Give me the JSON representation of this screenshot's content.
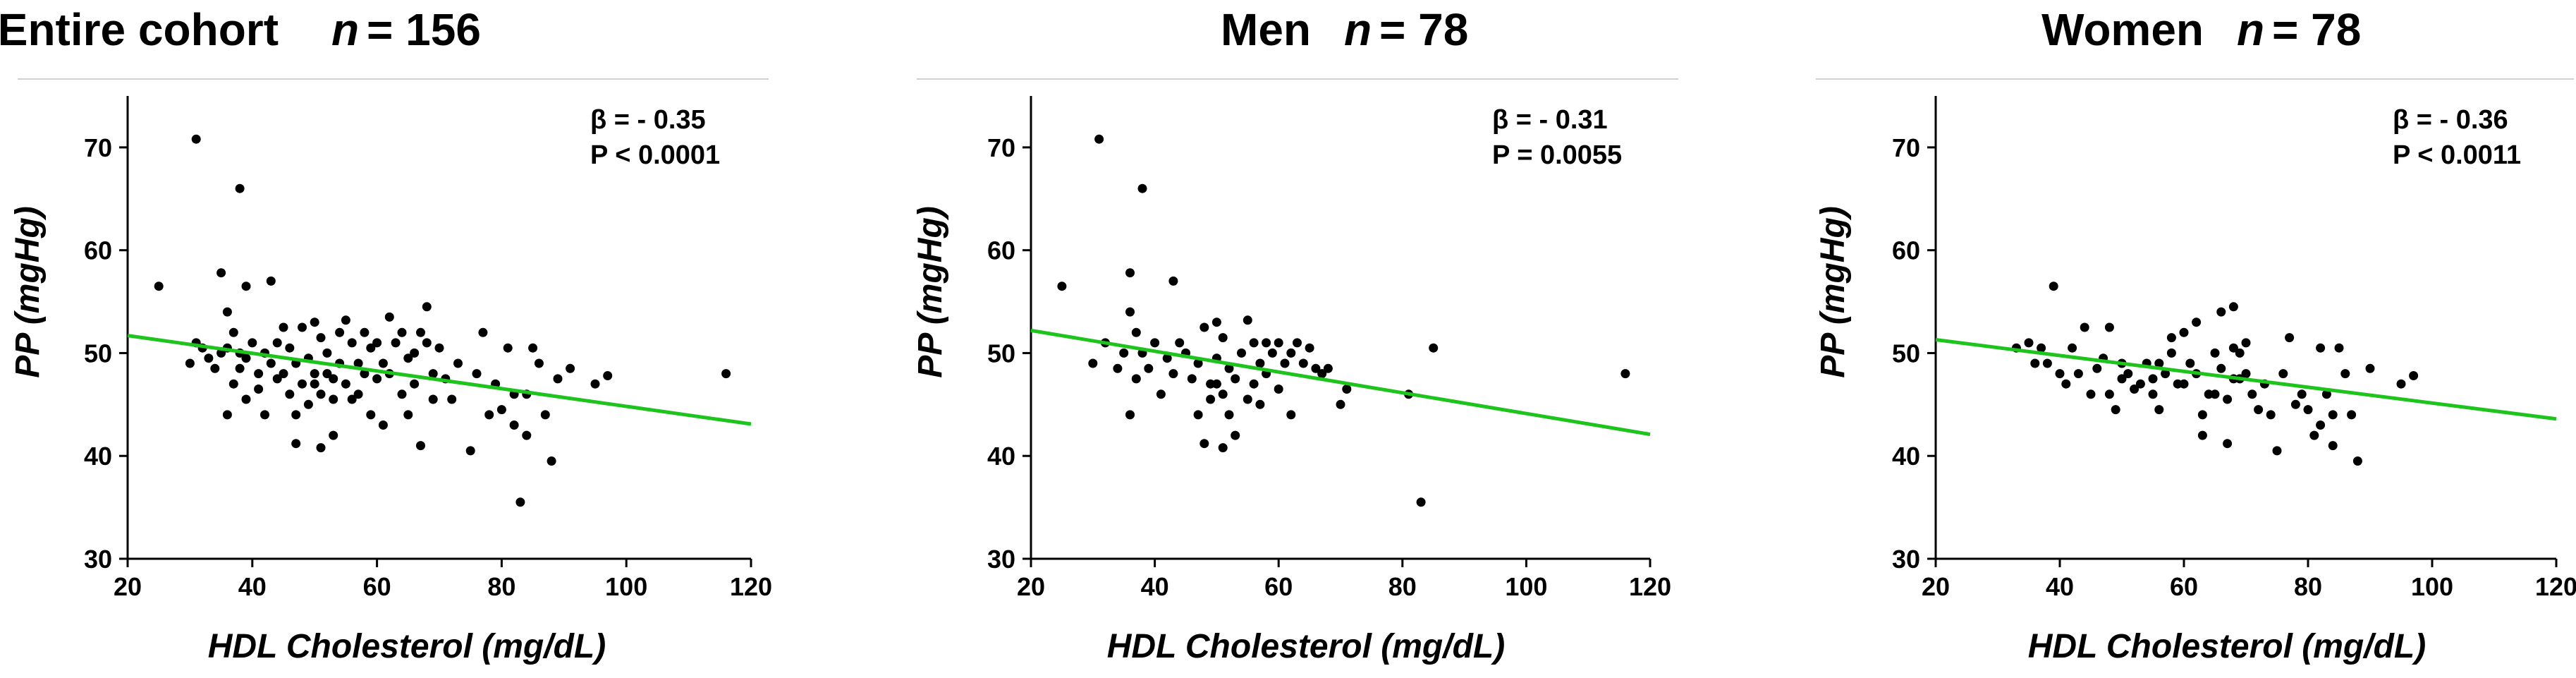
{
  "chart_data": [
    {
      "type": "scatter",
      "panel": "entire",
      "title": "Entire cohort",
      "n_label": "n",
      "n_value": "= 156",
      "xlabel": "HDL Cholesterol (mg/dL)",
      "ylabel": "PP (mgHg)",
      "xlim": [
        20,
        120
      ],
      "ylim": [
        30,
        75
      ],
      "xticks": [
        20,
        40,
        60,
        80,
        100,
        120
      ],
      "yticks": [
        30,
        40,
        50,
        60,
        70
      ],
      "beta": "β = - 0.35",
      "p": "P < 0.0001",
      "fit_line": {
        "x": [
          20,
          120
        ],
        "y": [
          51.7,
          43.1
        ]
      },
      "points": [
        [
          25,
          56.5
        ],
        [
          30,
          49
        ],
        [
          31,
          70.8
        ],
        [
          31,
          51
        ],
        [
          32,
          50.5
        ],
        [
          33,
          49.5
        ],
        [
          34,
          48.5
        ],
        [
          35,
          50
        ],
        [
          35,
          57.8
        ],
        [
          36,
          54
        ],
        [
          36,
          44
        ],
        [
          36,
          50.5
        ],
        [
          37,
          52
        ],
        [
          37,
          47
        ],
        [
          38,
          66
        ],
        [
          38,
          50
        ],
        [
          38,
          48.5
        ],
        [
          39,
          45.5
        ],
        [
          39,
          49.5
        ],
        [
          39,
          56.5
        ],
        [
          40,
          51
        ],
        [
          41,
          48
        ],
        [
          41,
          46.5
        ],
        [
          42,
          50
        ],
        [
          42,
          44
        ],
        [
          43,
          57
        ],
        [
          43,
          49
        ],
        [
          44,
          51
        ],
        [
          44,
          47.5
        ],
        [
          45,
          52.5
        ],
        [
          45,
          48
        ],
        [
          46,
          46
        ],
        [
          46,
          50.5
        ],
        [
          47,
          49
        ],
        [
          47,
          44
        ],
        [
          47,
          41.2
        ],
        [
          48,
          52.5
        ],
        [
          48,
          47
        ],
        [
          49,
          49.5
        ],
        [
          49,
          45
        ],
        [
          50,
          53
        ],
        [
          50,
          48
        ],
        [
          50,
          47
        ],
        [
          51,
          51.5
        ],
        [
          51,
          46
        ],
        [
          51,
          40.8
        ],
        [
          52,
          50
        ],
        [
          52,
          48
        ],
        [
          53,
          47.5
        ],
        [
          53,
          45.5
        ],
        [
          53,
          42
        ],
        [
          54,
          52
        ],
        [
          54,
          49
        ],
        [
          55,
          53.2
        ],
        [
          55,
          47
        ],
        [
          56,
          51
        ],
        [
          56,
          45.5
        ],
        [
          57,
          49
        ],
        [
          57,
          46
        ],
        [
          58,
          52
        ],
        [
          58,
          48
        ],
        [
          59,
          50.5
        ],
        [
          59,
          44
        ],
        [
          60,
          51
        ],
        [
          60,
          47.5
        ],
        [
          61,
          49
        ],
        [
          61,
          43
        ],
        [
          62,
          53.5
        ],
        [
          62,
          48
        ],
        [
          63,
          51
        ],
        [
          64,
          46
        ],
        [
          64,
          52
        ],
        [
          65,
          49.5
        ],
        [
          65,
          44
        ],
        [
          66,
          50
        ],
        [
          66,
          47
        ],
        [
          67,
          52
        ],
        [
          67,
          41
        ],
        [
          68,
          54.5
        ],
        [
          68,
          51
        ],
        [
          69,
          48
        ],
        [
          69,
          45.5
        ],
        [
          70,
          50.5
        ],
        [
          71,
          47.5
        ],
        [
          72,
          45.5
        ],
        [
          73,
          49
        ],
        [
          75,
          40.5
        ],
        [
          76,
          48
        ],
        [
          77,
          52
        ],
        [
          78,
          44
        ],
        [
          79,
          47
        ],
        [
          80,
          44.5
        ],
        [
          81,
          50.5
        ],
        [
          82,
          46
        ],
        [
          82,
          43
        ],
        [
          83,
          35.5
        ],
        [
          84,
          42
        ],
        [
          84,
          46
        ],
        [
          85,
          50.5
        ],
        [
          86,
          49
        ],
        [
          87,
          44
        ],
        [
          88,
          39.5
        ],
        [
          89,
          47.5
        ],
        [
          91,
          48.5
        ],
        [
          95,
          47
        ],
        [
          97,
          47.8
        ],
        [
          116,
          48
        ]
      ]
    },
    {
      "type": "scatter",
      "panel": "men",
      "title": "Men",
      "n_label": "n",
      "n_value": "= 78",
      "xlabel": "HDL Cholesterol (mg/dL)",
      "ylabel": "PP (mgHg)",
      "xlim": [
        20,
        120
      ],
      "ylim": [
        30,
        75
      ],
      "xticks": [
        20,
        40,
        60,
        80,
        100,
        120
      ],
      "yticks": [
        30,
        40,
        50,
        60,
        70
      ],
      "beta": "β = - 0.31",
      "p": "P = 0.0055",
      "fit_line": {
        "x": [
          20,
          120
        ],
        "y": [
          52.2,
          42.1
        ]
      },
      "points": [
        [
          25,
          56.5
        ],
        [
          30,
          49
        ],
        [
          31,
          70.8
        ],
        [
          32,
          51
        ],
        [
          34,
          48.5
        ],
        [
          35,
          50
        ],
        [
          36,
          57.8
        ],
        [
          36,
          54
        ],
        [
          36,
          44
        ],
        [
          37,
          52
        ],
        [
          37,
          47.5
        ],
        [
          38,
          66
        ],
        [
          38,
          50
        ],
        [
          39,
          48.5
        ],
        [
          40,
          51
        ],
        [
          41,
          46
        ],
        [
          42,
          49.5
        ],
        [
          43,
          57
        ],
        [
          43,
          48
        ],
        [
          44,
          51
        ],
        [
          45,
          50
        ],
        [
          46,
          47.5
        ],
        [
          47,
          49
        ],
        [
          47,
          44
        ],
        [
          48,
          52.5
        ],
        [
          48,
          41.2
        ],
        [
          49,
          47
        ],
        [
          49,
          45.5
        ],
        [
          50,
          53
        ],
        [
          50,
          49.5
        ],
        [
          50,
          47
        ],
        [
          51,
          51.5
        ],
        [
          51,
          46
        ],
        [
          51,
          40.8
        ],
        [
          52,
          48.5
        ],
        [
          52,
          44
        ],
        [
          53,
          47.5
        ],
        [
          53,
          42
        ],
        [
          54,
          50
        ],
        [
          55,
          53.2
        ],
        [
          55,
          45.5
        ],
        [
          56,
          51
        ],
        [
          56,
          47
        ],
        [
          57,
          49
        ],
        [
          57,
          45
        ],
        [
          58,
          51
        ],
        [
          58,
          48
        ],
        [
          59,
          50
        ],
        [
          60,
          51
        ],
        [
          60,
          46.5
        ],
        [
          61,
          49
        ],
        [
          62,
          50
        ],
        [
          62,
          44
        ],
        [
          63,
          51
        ],
        [
          64,
          49
        ],
        [
          65,
          50.5
        ],
        [
          66,
          48.5
        ],
        [
          67,
          48
        ],
        [
          68,
          48.5
        ],
        [
          70,
          45
        ],
        [
          71,
          46.5
        ],
        [
          81,
          46
        ],
        [
          83,
          35.5
        ],
        [
          85,
          50.5
        ],
        [
          116,
          48
        ]
      ]
    },
    {
      "type": "scatter",
      "panel": "women",
      "title": "Women",
      "n_label": "n",
      "n_value": "= 78",
      "xlabel": "HDL Cholesterol (mg/dL)",
      "ylabel": "PP (mgHg)",
      "xlim": [
        20,
        120
      ],
      "ylim": [
        30,
        75
      ],
      "xticks": [
        20,
        40,
        60,
        80,
        100,
        120
      ],
      "yticks": [
        30,
        40,
        50,
        60,
        70
      ],
      "beta": "β = - 0.36",
      "p": "P < 0.0011",
      "fit_line": {
        "x": [
          20,
          120
        ],
        "y": [
          51.3,
          43.6
        ]
      },
      "points": [
        [
          33,
          50.5
        ],
        [
          35,
          51
        ],
        [
          36,
          49
        ],
        [
          37,
          50.5
        ],
        [
          38,
          49
        ],
        [
          39,
          56.5
        ],
        [
          40,
          48
        ],
        [
          41,
          47
        ],
        [
          42,
          50.5
        ],
        [
          43,
          48
        ],
        [
          44,
          52.5
        ],
        [
          45,
          46
        ],
        [
          46,
          48.5
        ],
        [
          47,
          49.5
        ],
        [
          48,
          52.5
        ],
        [
          48,
          46
        ],
        [
          49,
          44.5
        ],
        [
          50,
          47.5
        ],
        [
          50,
          49
        ],
        [
          51,
          48
        ],
        [
          52,
          46.5
        ],
        [
          53,
          47
        ],
        [
          54,
          49
        ],
        [
          55,
          46
        ],
        [
          55,
          47.5
        ],
        [
          56,
          49
        ],
        [
          56,
          44.5
        ],
        [
          57,
          48
        ],
        [
          58,
          50
        ],
        [
          58,
          51.5
        ],
        [
          59,
          47
        ],
        [
          60,
          52
        ],
        [
          60,
          47
        ],
        [
          61,
          49
        ],
        [
          62,
          53
        ],
        [
          62,
          48
        ],
        [
          63,
          44
        ],
        [
          63,
          42
        ],
        [
          64,
          46
        ],
        [
          65,
          50
        ],
        [
          65,
          46
        ],
        [
          66,
          54
        ],
        [
          66,
          48.5
        ],
        [
          67,
          41.2
        ],
        [
          67,
          45.5
        ],
        [
          68,
          54.5
        ],
        [
          68,
          50.5
        ],
        [
          68,
          47.5
        ],
        [
          69,
          47.5
        ],
        [
          69,
          50
        ],
        [
          70,
          51
        ],
        [
          70,
          48
        ],
        [
          71,
          46
        ],
        [
          72,
          44.5
        ],
        [
          73,
          47
        ],
        [
          74,
          44
        ],
        [
          75,
          40.5
        ],
        [
          76,
          48
        ],
        [
          77,
          51.5
        ],
        [
          78,
          45
        ],
        [
          79,
          46
        ],
        [
          80,
          44.5
        ],
        [
          81,
          42
        ],
        [
          82,
          50.5
        ],
        [
          82,
          43
        ],
        [
          83,
          46
        ],
        [
          84,
          41
        ],
        [
          84,
          44
        ],
        [
          85,
          50.5
        ],
        [
          86,
          48
        ],
        [
          87,
          44
        ],
        [
          88,
          39.5
        ],
        [
          90,
          48.5
        ],
        [
          95,
          47
        ],
        [
          97,
          47.8
        ]
      ]
    }
  ]
}
